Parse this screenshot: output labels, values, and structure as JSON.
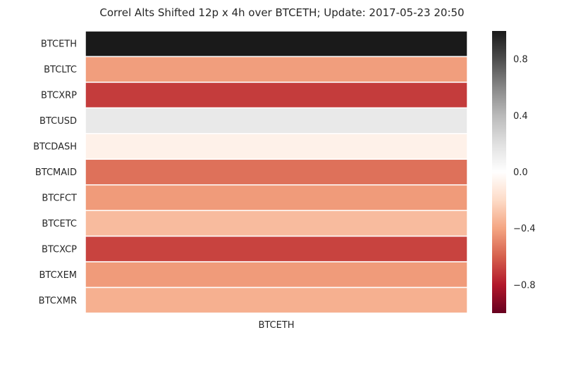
{
  "chart_data": {
    "type": "heatmap",
    "title": "Correl Alts Shifted 12p x 4h over BTCETH; Update: 2017-05-23 20:50",
    "columns": [
      "BTCETH"
    ],
    "rows": [
      "BTCETH",
      "BTCLTC",
      "BTCXRP",
      "BTCUSD",
      "BTCDASH",
      "BTCMAID",
      "BTCFCT",
      "BTCETC",
      "BTCXCP",
      "BTCXEM",
      "BTCXMR"
    ],
    "values": [
      1.0,
      -0.42,
      -0.7,
      0.14,
      -0.08,
      -0.55,
      -0.43,
      -0.32,
      -0.68,
      -0.43,
      -0.36
    ],
    "colorbar": {
      "range": [
        -1,
        1
      ],
      "ticks": [
        0.8,
        0.4,
        0.0,
        -0.4,
        -0.8
      ],
      "tick_labels": [
        "0.8",
        "0.4",
        "0.0",
        "−0.4",
        "−0.8"
      ],
      "colormap": "RdGy_r"
    }
  }
}
